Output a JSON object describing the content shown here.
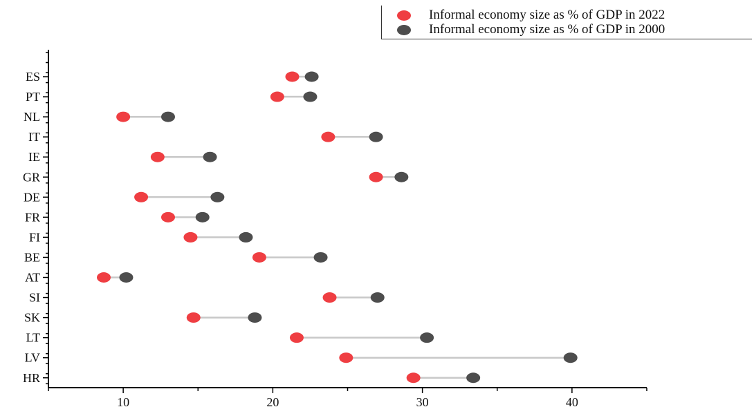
{
  "chart_data": {
    "type": "scatter",
    "subtype": "dumbbell",
    "orientation": "horizontal",
    "categories": [
      "ES",
      "PT",
      "NL",
      "IT",
      "IE",
      "GR",
      "DE",
      "FR",
      "FI",
      "BE",
      "AT",
      "SI",
      "SK",
      "LT",
      "LV",
      "HR"
    ],
    "series": [
      {
        "name": "Informal economy size as % of GDP in 2022",
        "color": "#ef3e42",
        "values": [
          21.3,
          20.3,
          10.0,
          23.7,
          12.3,
          26.9,
          11.2,
          13.0,
          14.5,
          19.1,
          8.7,
          23.8,
          14.7,
          21.6,
          24.9,
          29.4
        ]
      },
      {
        "name": "Informal economy size as % of GDP in 2000",
        "color": "#4d4d4d",
        "values": [
          22.6,
          22.5,
          13.0,
          26.9,
          15.8,
          28.6,
          16.3,
          15.3,
          18.2,
          23.2,
          10.2,
          27.0,
          18.8,
          30.3,
          39.9,
          33.4
        ]
      }
    ],
    "xlim": [
      5,
      45
    ],
    "xticks": [
      10,
      20,
      30,
      40
    ],
    "xlabel": "",
    "ylabel": "",
    "connector_color": "#c8c8c8",
    "legend_position": "top-right",
    "grid": false
  }
}
